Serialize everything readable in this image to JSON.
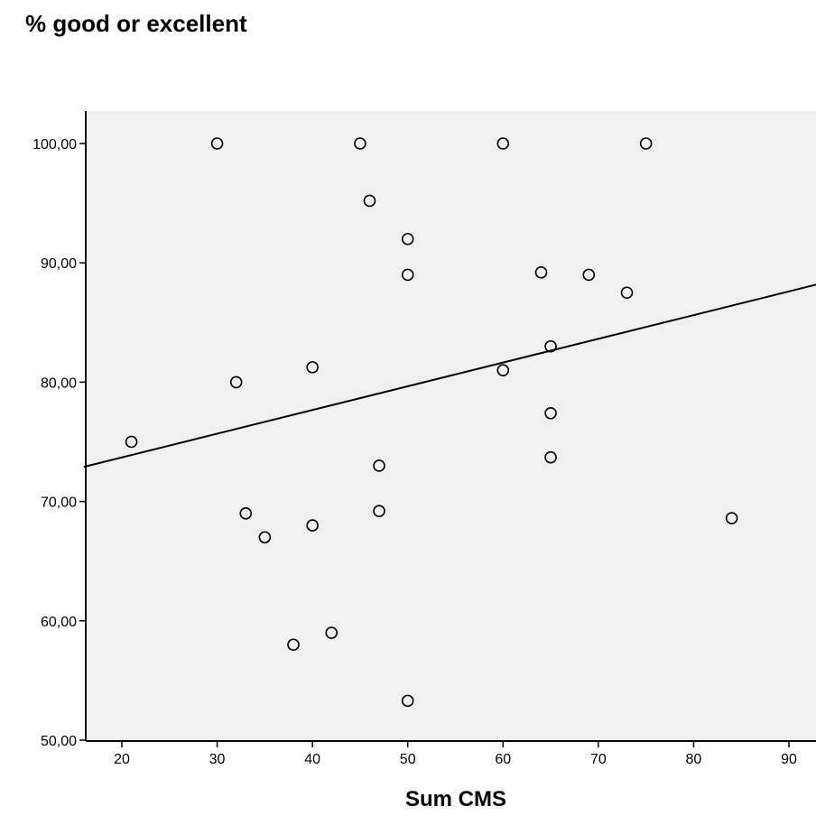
{
  "chart_data": {
    "type": "scatter",
    "title": "",
    "xlabel": "Sum CMS",
    "ylabel": "% good or excellent",
    "xlim": [
      16,
      94
    ],
    "ylim": [
      50,
      102.7
    ],
    "x_ticks": [
      20,
      30,
      40,
      50,
      60,
      70,
      80,
      90
    ],
    "x_tick_labels": [
      "20",
      "30",
      "40",
      "50",
      "60",
      "70",
      "80",
      "90"
    ],
    "y_ticks": [
      50,
      60,
      70,
      80,
      90,
      100
    ],
    "y_tick_labels": [
      "50,00",
      "60,00",
      "70,00",
      "80,00",
      "90,00",
      "100,00"
    ],
    "grid": false,
    "colors": {
      "plot_background": "#f0f0f0",
      "marker_stroke": "#000000",
      "line": "#000000"
    },
    "points": [
      {
        "x": 21,
        "y": 75.0
      },
      {
        "x": 30,
        "y": 100.0
      },
      {
        "x": 32,
        "y": 80.0
      },
      {
        "x": 33,
        "y": 69.0
      },
      {
        "x": 35,
        "y": 67.0
      },
      {
        "x": 38,
        "y": 58.0
      },
      {
        "x": 40,
        "y": 81.25
      },
      {
        "x": 40,
        "y": 68.0
      },
      {
        "x": 42,
        "y": 59.0
      },
      {
        "x": 45,
        "y": 100.0
      },
      {
        "x": 46,
        "y": 95.2
      },
      {
        "x": 47,
        "y": 73.0
      },
      {
        "x": 47,
        "y": 69.2
      },
      {
        "x": 50,
        "y": 92.0
      },
      {
        "x": 50,
        "y": 89.0
      },
      {
        "x": 50,
        "y": 53.3
      },
      {
        "x": 60,
        "y": 100.0
      },
      {
        "x": 60,
        "y": 81.0
      },
      {
        "x": 64,
        "y": 89.2
      },
      {
        "x": 65,
        "y": 83.0
      },
      {
        "x": 65,
        "y": 77.4
      },
      {
        "x": 65,
        "y": 73.7
      },
      {
        "x": 69,
        "y": 89.0
      },
      {
        "x": 73,
        "y": 87.5
      },
      {
        "x": 75,
        "y": 100.0
      },
      {
        "x": 84,
        "y": 68.6
      }
    ],
    "fit_line": {
      "type": "linear",
      "from": {
        "x": 16,
        "y": 72.9
      },
      "to": {
        "x": 94,
        "y": 88.4
      }
    }
  }
}
